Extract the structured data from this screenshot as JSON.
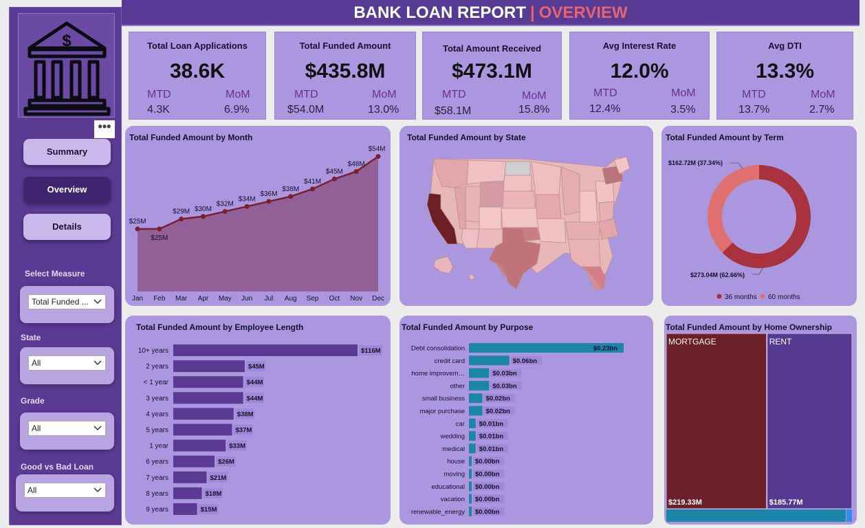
{
  "header": {
    "title": "BANK LOAN REPORT",
    "separator": "|",
    "subtitle": "OVERVIEW"
  },
  "sidebar": {
    "more_label": "•••",
    "nav": [
      {
        "label": "Summary",
        "active": false
      },
      {
        "label": "Overview",
        "active": true
      },
      {
        "label": "Details",
        "active": false
      }
    ],
    "slicers": [
      {
        "label": "Select Measure",
        "value": "Total Funded ..."
      },
      {
        "label": "State",
        "value": "All"
      },
      {
        "label": "Grade",
        "value": "All"
      },
      {
        "label": "Good vs Bad Loan",
        "value": "All"
      }
    ]
  },
  "kpis": [
    {
      "title": "Total Loan Applications",
      "value": "38.6K",
      "mtd_label": "MTD",
      "mtd": "4.3K",
      "mom_label": "MoM",
      "mom": "6.9%"
    },
    {
      "title": "Total Funded Amount",
      "value": "$435.8M",
      "mtd_label": "MTD",
      "mtd": "$54.0M",
      "mom_label": "MoM",
      "mom": "13.0%"
    },
    {
      "title": "Total Amount Received",
      "value": "$473.1M",
      "mtd_label": "MTD",
      "mtd": "$58.1M",
      "mom_label": "MoM",
      "mom": "15.8%"
    },
    {
      "title": "Avg Interest Rate",
      "value": "12.0%",
      "mtd_label": "MTD",
      "mtd": "12.4%",
      "mom_label": "MoM",
      "mom": "3.5%"
    },
    {
      "title": "Avg DTI",
      "value": "13.3%",
      "mtd_label": "MTD",
      "mtd": "13.7%",
      "mom_label": "MoM",
      "mom": "2.7%"
    }
  ],
  "colors": {
    "sidebar": "#5a3a93",
    "card": "#ab97df",
    "line": "#7a1f2e",
    "area": "#8e5a8f",
    "bar_employee": "#5a3a93",
    "bar_purpose": "#1b86a8",
    "term_36": "#a8323d",
    "term_60": "#e07070",
    "mortgage": "#6b2127",
    "rent": "#563a92"
  },
  "chart_data": [
    {
      "type": "area",
      "title": "Total Funded Amount by Month",
      "categories": [
        "Jan",
        "Feb",
        "Mar",
        "Apr",
        "May",
        "Jun",
        "Jul",
        "Aug",
        "Sep",
        "Oct",
        "Nov",
        "Dec"
      ],
      "values": [
        25,
        25,
        29,
        30,
        32,
        34,
        36,
        38,
        41,
        45,
        48,
        54
      ],
      "labels": [
        "$25M",
        "$25M",
        "$29M",
        "$30M",
        "$32M",
        "$34M",
        "$36M",
        "$38M",
        "$41M",
        "$45M",
        "$48M",
        "$54M"
      ],
      "unit": "$M"
    },
    {
      "type": "map",
      "title": "Total Funded Amount by State"
    },
    {
      "type": "pie",
      "title": "Total Funded Amount by Term",
      "slices": [
        {
          "name": "36 months",
          "value": 273.04,
          "label": "$273.04M (62.66%)"
        },
        {
          "name": "60 months",
          "value": 162.72,
          "label": "$162.72M (37.34%)"
        }
      ]
    },
    {
      "type": "bar",
      "title": "Total Funded Amount by Employee Length",
      "categories": [
        "10+ years",
        "2 years",
        "< 1 year",
        "3 years",
        "4 years",
        "5 years",
        "1 year",
        "6 years",
        "7 years",
        "8 years",
        "9 years"
      ],
      "values": [
        116,
        45,
        44,
        44,
        38,
        37,
        33,
        26,
        21,
        18,
        15
      ],
      "labels": [
        "$116M",
        "$45M",
        "$44M",
        "$44M",
        "$38M",
        "$37M",
        "$33M",
        "$26M",
        "$21M",
        "$18M",
        "$15M"
      ],
      "unit": "$M"
    },
    {
      "type": "bar",
      "title": "Total Funded Amount by Purpose",
      "categories": [
        "Debt consolidation",
        "credit card",
        "home improvem…",
        "other",
        "small business",
        "major purchase",
        "car",
        "wedding",
        "medical",
        "house",
        "moving",
        "educational",
        "vacation",
        "renewable_energy"
      ],
      "values": [
        0.23,
        0.06,
        0.03,
        0.03,
        0.02,
        0.02,
        0.01,
        0.01,
        0.01,
        0.0,
        0.0,
        0.0,
        0.0,
        0.0
      ],
      "labels": [
        "$0.23bn",
        "$0.06bn",
        "$0.03bn",
        "$0.03bn",
        "$0.02bn",
        "$0.02bn",
        "$0.01bn",
        "$0.01bn",
        "$0.01bn",
        "$0.00bn",
        "$0.00bn",
        "$0.00bn",
        "$0.00bn",
        "$0.00bn"
      ],
      "unit": "$bn"
    },
    {
      "type": "treemap",
      "title": "Total Funded Amount by Home Ownership",
      "items": [
        {
          "name": "MORTGAGE",
          "value": 219.33,
          "label": "$219.33M"
        },
        {
          "name": "RENT",
          "value": 185.77,
          "label": "$185.77M"
        }
      ]
    }
  ]
}
